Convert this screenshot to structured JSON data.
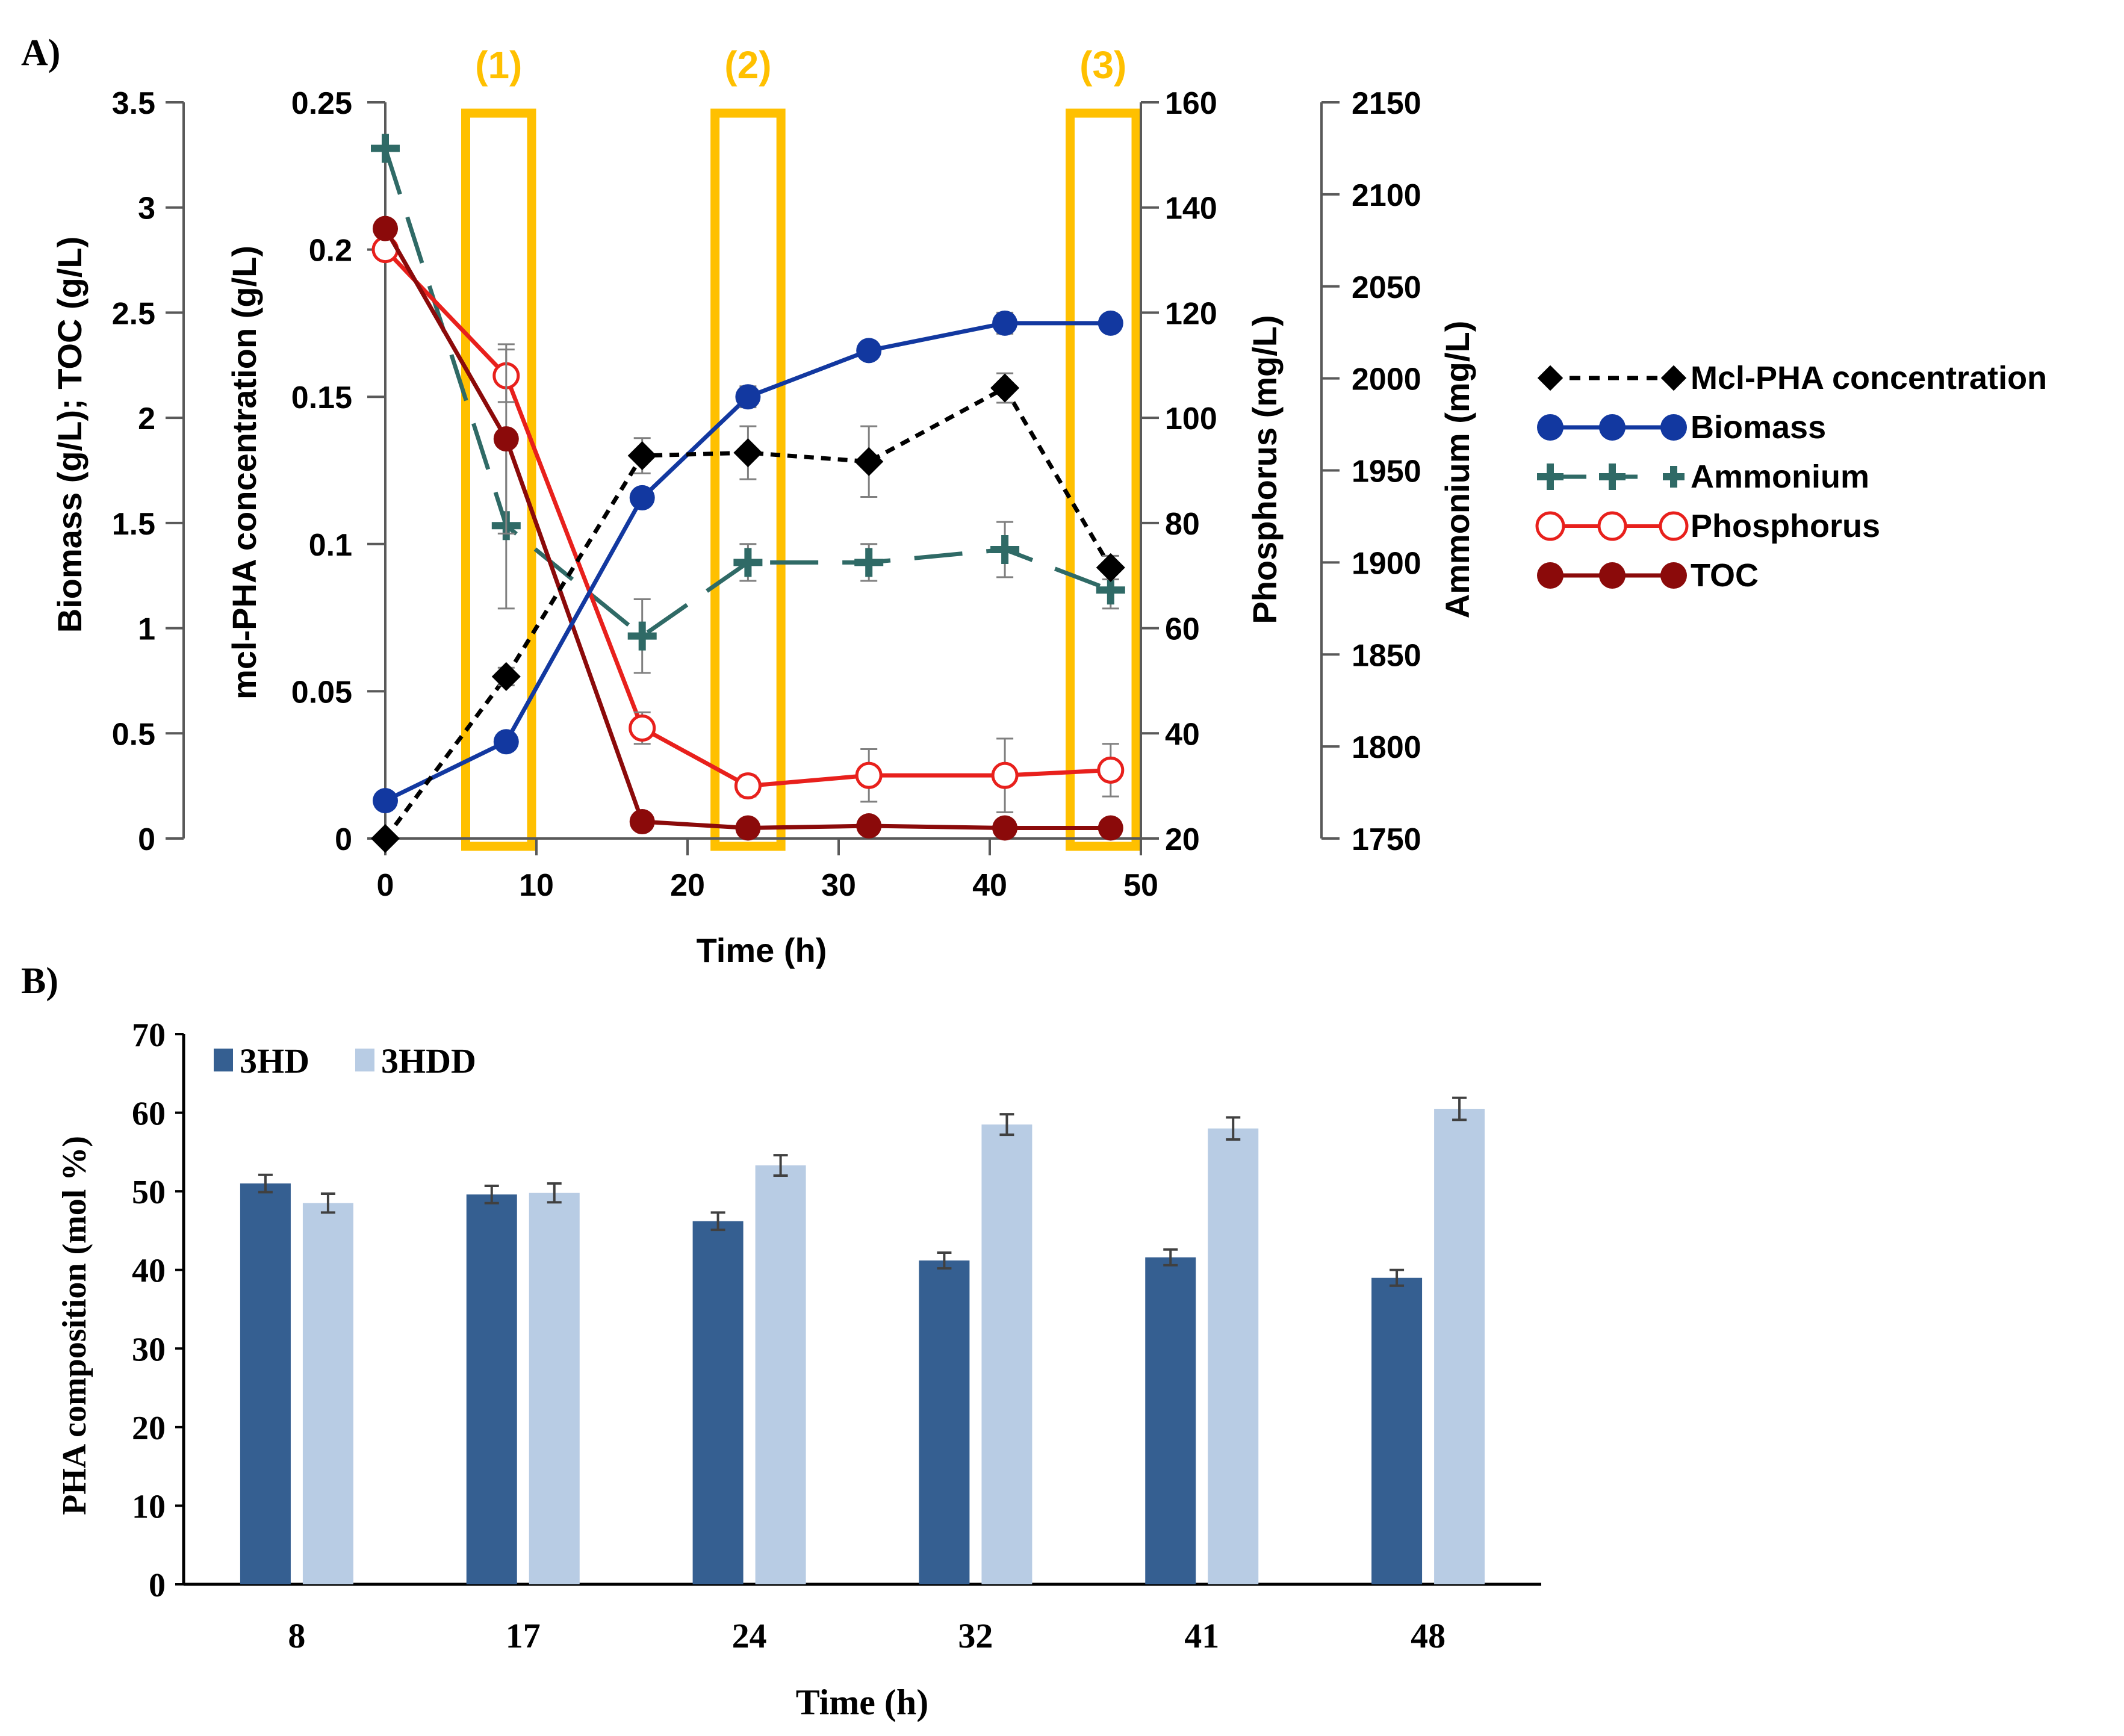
{
  "chart_data": [
    {
      "panel_label": "A)",
      "type": "line",
      "x": [
        0,
        8,
        17,
        24,
        32,
        41,
        48
      ],
      "xlabel": "Time (h)",
      "xlim": [
        0,
        50
      ],
      "xticks": [
        0,
        10,
        20,
        30,
        40,
        50
      ],
      "axes": {
        "biomass_toc": {
          "label": "Biomass (g/L); TOC (g/L)",
          "ylim": [
            0,
            3.5
          ],
          "ticks": [
            "0",
            "0.5",
            "1",
            "1.5",
            "2",
            "2.5",
            "3",
            "3.5"
          ]
        },
        "pha": {
          "label": "mcl-PHA concentration (g/L)",
          "ylim": [
            0,
            0.25
          ],
          "ticks": [
            "0",
            "0.05",
            "0.1",
            "0.15",
            "0.2",
            "0.25"
          ]
        },
        "phosphorus": {
          "label": "Phosphorus (mg/L)",
          "ylim": [
            20,
            160
          ],
          "ticks": [
            "20",
            "40",
            "60",
            "80",
            "100",
            "120",
            "140",
            "160"
          ]
        },
        "ammonium": {
          "label": "Ammonium (mg/L)",
          "ylim": [
            1750,
            2150
          ],
          "ticks": [
            "1750",
            "1800",
            "1850",
            "1900",
            "1950",
            "2000",
            "2050",
            "2100",
            "2150"
          ]
        }
      },
      "series": [
        {
          "name": "Mcl-PHA concentration",
          "axis": "pha",
          "color": "#000000",
          "marker": "diamond",
          "line": "dotted",
          "values": [
            0.0,
            0.055,
            0.13,
            0.131,
            0.128,
            0.153,
            0.092
          ],
          "errors": [
            0,
            0.003,
            0.006,
            0.009,
            0.012,
            0.005,
            0.004
          ]
        },
        {
          "name": "Biomass",
          "axis": "biomass_toc",
          "color": "#1238a0",
          "marker": "circle",
          "line": "solid",
          "values": [
            0.18,
            0.46,
            1.62,
            2.1,
            2.32,
            2.45,
            2.45
          ],
          "errors": [
            0,
            0.02,
            0.03,
            0.05,
            0.03,
            0.05,
            0.02
          ]
        },
        {
          "name": "Ammonium",
          "axis": "ammonium",
          "color": "#2f6a66",
          "marker": "plus",
          "line": "dashed",
          "values": [
            2125,
            1920,
            1860,
            1900,
            1900,
            1907,
            1885
          ],
          "errors": [
            0,
            45,
            20,
            10,
            10,
            15,
            10
          ]
        },
        {
          "name": "Phosphorus",
          "axis": "phosphorus",
          "color": "#e8201c",
          "marker": "open-circle",
          "line": "solid",
          "values": [
            132,
            108,
            41,
            30,
            32,
            32,
            33
          ],
          "errors": [
            0,
            5,
            3,
            2,
            5,
            7,
            5
          ]
        },
        {
          "name": "TOC",
          "axis": "biomass_toc",
          "color": "#8b0a0a",
          "marker": "circle",
          "line": "solid",
          "values": [
            2.9,
            1.9,
            0.08,
            0.05,
            0.06,
            0.05,
            0.05
          ],
          "errors": [
            0,
            0.45,
            0.02,
            0.01,
            0.01,
            0.01,
            0.01
          ]
        }
      ],
      "highlights": [
        {
          "label": "(1)",
          "x_range": [
            5,
            10
          ]
        },
        {
          "label": "(2)",
          "x_range": [
            21.5,
            26.5
          ]
        },
        {
          "label": "(3)",
          "x_range": [
            45,
            50
          ]
        }
      ],
      "highlight_color": "#ffc000"
    },
    {
      "panel_label": "B)",
      "type": "bar",
      "categories": [
        "8",
        "17",
        "24",
        "32",
        "41",
        "48"
      ],
      "xlabel": "Time (h)",
      "ylabel": "PHA composition (mol %)",
      "ylim": [
        0,
        70
      ],
      "yticks": [
        "0",
        "10",
        "20",
        "30",
        "40",
        "50",
        "60",
        "70"
      ],
      "series": [
        {
          "name": "3HD",
          "color": "#355f91",
          "values": [
            51,
            49.6,
            46.2,
            41.2,
            41.6,
            39
          ],
          "errors": [
            1.1,
            1.1,
            1.1,
            1.0,
            1.0,
            1.0
          ]
        },
        {
          "name": "3HDD",
          "color": "#b8cce4",
          "values": [
            48.5,
            49.8,
            53.3,
            58.5,
            58,
            60.5
          ],
          "errors": [
            1.2,
            1.2,
            1.3,
            1.3,
            1.4,
            1.4
          ]
        }
      ]
    }
  ]
}
